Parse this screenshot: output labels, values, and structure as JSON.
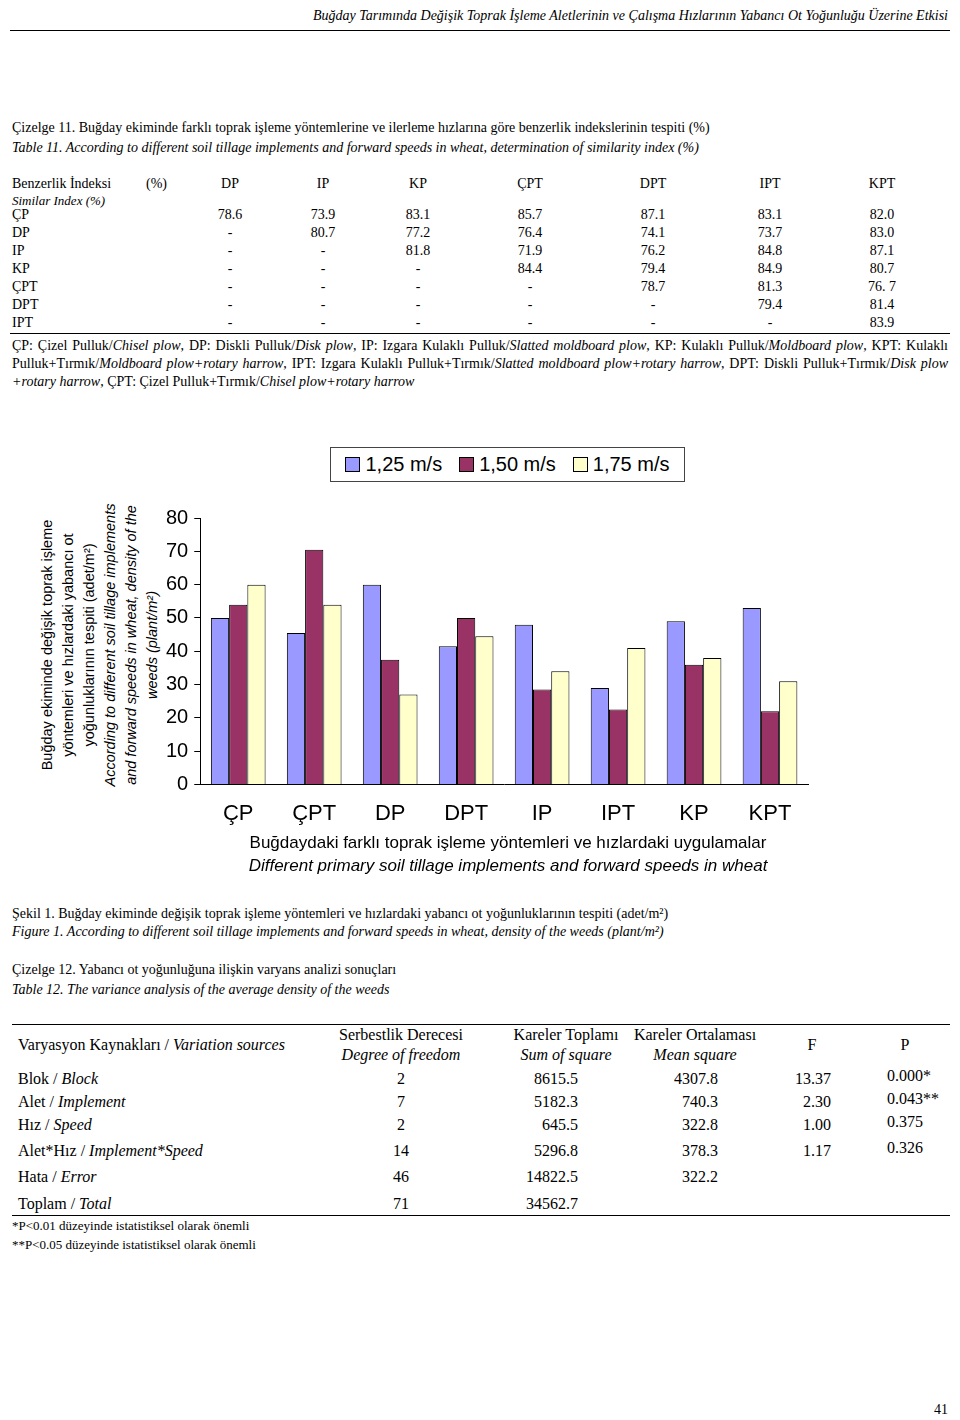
{
  "header": {
    "running_title": "Buğday Tarımında Değişik Toprak İşleme Aletlerinin ve Çalışma Hızlarının Yabancı Ot Yoğunluğu Üzerine Etkisi"
  },
  "table11": {
    "caption_tr": "Çizelge 11. Buğday ekiminde farklı toprak işleme yöntemlerine ve ilerleme hızlarına göre benzerlik indekslerinin tespiti (%)",
    "caption_en": "Table 11. According to different soil tillage implements and forward speeds in wheat, determination of similarity index (%)",
    "corner_tr": "Benzerlik İndeksi",
    "corner_unit": "(%)",
    "corner_en": "Similar Index (%)",
    "columns": [
      "DP",
      "IP",
      "KP",
      "ÇPT",
      "DPT",
      "IPT",
      "KPT"
    ],
    "rows": [
      {
        "label": "ÇP",
        "cells": [
          "78.6",
          "73.9",
          "83.1",
          "85.7",
          "87.1",
          "83.1",
          "82.0"
        ]
      },
      {
        "label": "DP",
        "cells": [
          "-",
          "80.7",
          "77.2",
          "76.4",
          "74.1",
          "73.7",
          "83.0"
        ]
      },
      {
        "label": "IP",
        "cells": [
          "-",
          "-",
          "81.8",
          "71.9",
          "76.2",
          "84.8",
          "87.1"
        ]
      },
      {
        "label": "KP",
        "cells": [
          "-",
          "-",
          "-",
          "84.4",
          "79.4",
          "84.9",
          "80.7"
        ]
      },
      {
        "label": "ÇPT",
        "cells": [
          "-",
          "-",
          "-",
          "-",
          "78.7",
          "81.3",
          "76. 7"
        ]
      },
      {
        "label": "DPT",
        "cells": [
          "-",
          "-",
          "-",
          "-",
          "-",
          "79.4",
          "81.4"
        ]
      },
      {
        "label": "IPT",
        "cells": [
          "-",
          "-",
          "-",
          "-",
          "-",
          "-",
          "83.9"
        ]
      }
    ],
    "note": [
      {
        "t": "ÇP: Çizel Pulluk/",
        "i": false
      },
      {
        "t": "Chisel plow",
        "i": true
      },
      {
        "t": ", DP: Diskli Pulluk/",
        "i": false
      },
      {
        "t": "Disk plow",
        "i": true
      },
      {
        "t": ", IP: Izgara Kulaklı Pulluk/",
        "i": false
      },
      {
        "t": "Slatted moldboard plow",
        "i": true
      },
      {
        "t": ", KP: Kulaklı Pulluk/",
        "i": false
      },
      {
        "t": "Moldboard plow",
        "i": true
      },
      {
        "t": ", KPT: Kulaklı Pulluk+Tırmık/",
        "i": false
      },
      {
        "t": "Moldboard plow+rotary harrow",
        "i": true
      },
      {
        "t": ", IPT: Izgara Kulaklı Pulluk+Tırmık/",
        "i": false
      },
      {
        "t": "Slatted moldboard plow+rotary harrow",
        "i": true
      },
      {
        "t": ", DPT: Diskli Pulluk+Tırmık/",
        "i": false
      },
      {
        "t": "Disk plow +rotary harrow",
        "i": true
      },
      {
        "t": ", ÇPT: Çizel Pulluk+Tırmık/",
        "i": false
      },
      {
        "t": "Chisel plow+rotary harrow",
        "i": true
      }
    ]
  },
  "chart_data": {
    "type": "bar",
    "categories": [
      "ÇP",
      "ÇPT",
      "DP",
      "DPT",
      "IP",
      "IPT",
      "KP",
      "KPT"
    ],
    "series": [
      {
        "name": "1,25 m/s",
        "color": "#9999ff",
        "values": [
          50,
          45.5,
          60,
          41.5,
          48,
          29,
          49,
          53
        ]
      },
      {
        "name": "1,50 m/s",
        "color": "#993366",
        "values": [
          54,
          70.5,
          37.5,
          50,
          28.5,
          22.5,
          36,
          22
        ]
      },
      {
        "name": "1,75 m/s",
        "color": "#ffffcc",
        "values": [
          60,
          54,
          27,
          44.5,
          34,
          41,
          38,
          31
        ]
      }
    ],
    "ylim": [
      0,
      80
    ],
    "yticks": [
      0,
      10,
      20,
      30,
      40,
      50,
      60,
      70,
      80
    ],
    "grid": false,
    "legend": "top",
    "y_label": {
      "tr": [
        "Buğday ekiminde değişik toprak işleme",
        "yöntemleri ve hızlardaki yabancı ot",
        "yoğunluklarının tespiti (adet/m²)"
      ],
      "en": [
        "According to different soil tillage implements",
        "and forward speeds in wheat, density of the",
        "weeds (plant/m²)"
      ]
    },
    "x_label": {
      "tr": "Buğdaydaki farklı toprak işleme yöntemleri ve hızlardaki uygulamalar",
      "en": "Different primary soil tillage implements and forward speeds in wheat"
    }
  },
  "figure_caption": {
    "tr": "Şekil 1. Buğday ekiminde değişik toprak işleme yöntemleri ve hızlardaki yabancı ot yoğunluklarının tespiti (adet/m²)",
    "en": "Figure 1. According to different soil tillage implements and forward speeds in wheat, density of the weeds (plant/m²)"
  },
  "table12": {
    "caption_tr": "Çizelge 12. Yabancı ot yoğunluğuna ilişkin varyans analizi sonuçları",
    "caption_en": "Table 12. The variance analysis of the average density of the weeds",
    "first_header": {
      "tr": "Varyasyon Kaynakları / ",
      "en": "Variation sources"
    },
    "headers": [
      {
        "tr": "Serbestlik Derecesi",
        "en": "Degree of freedom"
      },
      {
        "tr": "Kareler Toplamı",
        "en": "Sum of square"
      },
      {
        "tr": "Kareler Ortalaması",
        "en": "Mean square"
      },
      {
        "tr": "F"
      },
      {
        "tr": "P"
      }
    ],
    "rows": [
      {
        "tr": "Blok / ",
        "en": "Block",
        "cells": [
          "2",
          "8615.5",
          "4307.8",
          "13.37",
          "0.000*"
        ]
      },
      {
        "tr": "Alet / ",
        "en": "Implement",
        "cells": [
          "7",
          "5182.3",
          "740.3",
          "2.30",
          "0.043**"
        ]
      },
      {
        "tr": "Hız / ",
        "en": "Speed",
        "cells": [
          "2",
          "645.5",
          "322.8",
          "1.00",
          "0.375"
        ]
      },
      {
        "tr": "Alet*Hız / ",
        "en": "Implement*Speed",
        "cells": [
          "14",
          "5296.8",
          "378.3",
          "1.17",
          "0.326"
        ]
      },
      {
        "tr": "Hata / ",
        "en": "Error",
        "cells": [
          "46",
          "14822.5",
          "322.2"
        ]
      },
      {
        "tr": "Toplam / ",
        "en": "Total",
        "cells": [
          "71",
          "34562.7"
        ]
      }
    ],
    "footnotes": [
      "*P<0.01 düzeyinde istatistiksel olarak önemli",
      "**P<0.05 düzeyinde istatistiksel olarak önemli"
    ]
  },
  "page_number": "41"
}
